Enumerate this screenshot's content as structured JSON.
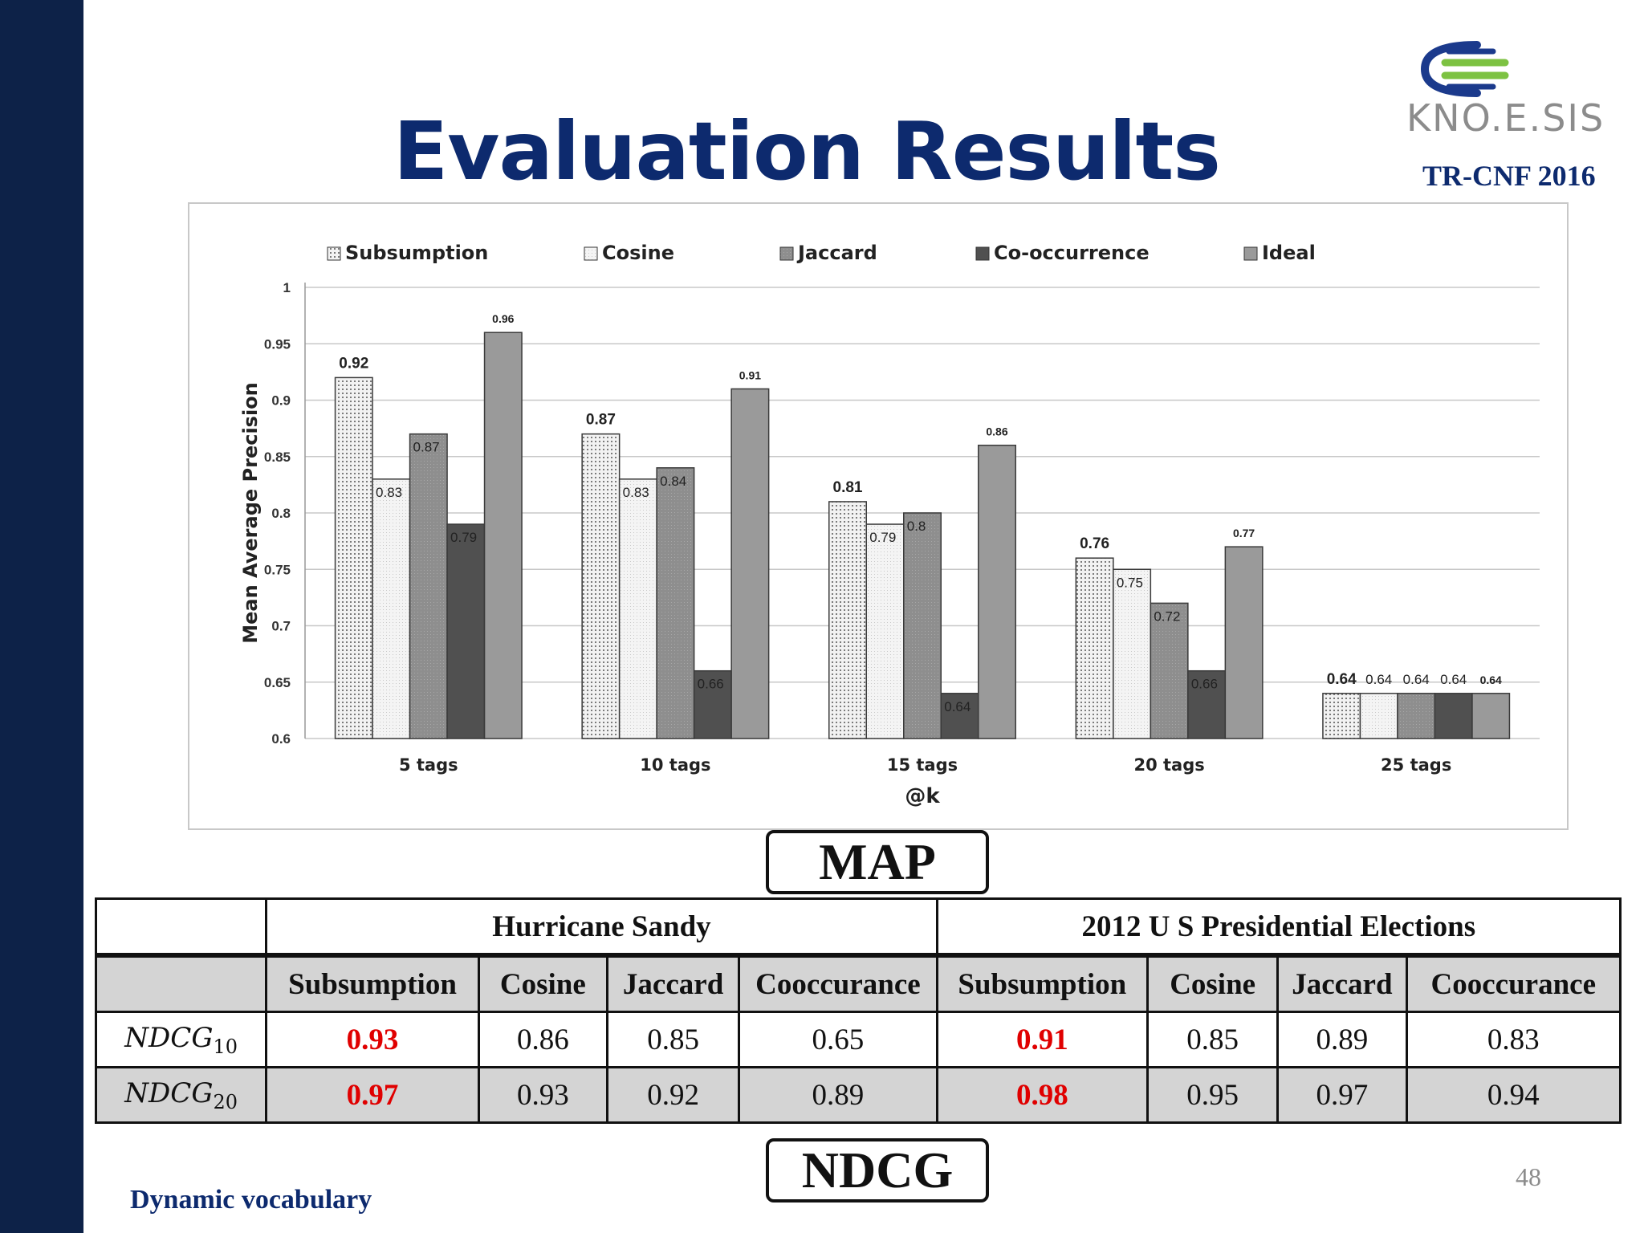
{
  "slide": {
    "title": "Evaluation Results",
    "logo_text": "KNO.E.SIS",
    "conference": "TR-CNF 2016",
    "footer": "Dynamic vocabulary",
    "page_number": "48",
    "map_label": "MAP",
    "ndcg_label": "NDCG"
  },
  "colors": {
    "sidebar": "#0d2248",
    "title": "#0d2a6e",
    "highlight": "#e00000",
    "logo_blue": "#1b3a8c",
    "logo_green": "#7dc242"
  },
  "chart_data": {
    "type": "bar",
    "title": "",
    "xlabel": "@k",
    "ylabel": "Mean Average Precision",
    "ylim": [
      0.6,
      1.0
    ],
    "yticks": [
      "0.6",
      "0.65",
      "0.7",
      "0.75",
      "0.8",
      "0.85",
      "0.9",
      "0.95",
      "1"
    ],
    "grid": true,
    "legend": "top",
    "categories": [
      "5 tags",
      "10 tags",
      "15 tags",
      "20 tags",
      "25 tags"
    ],
    "series": [
      {
        "name": "Subsumption",
        "values": [
          0.92,
          0.87,
          0.81,
          0.76,
          0.64
        ],
        "labels": [
          "0.92",
          "0.87",
          "0.81",
          "0.76",
          "0.64"
        ],
        "pattern": "grid"
      },
      {
        "name": "Cosine",
        "values": [
          0.83,
          0.83,
          0.79,
          0.75,
          0.64
        ],
        "labels": [
          "0.83",
          "0.83",
          "0.79",
          "0.75",
          "0.64"
        ],
        "pattern": "dots"
      },
      {
        "name": "Jaccard",
        "values": [
          0.87,
          0.84,
          0.8,
          0.72,
          0.64
        ],
        "labels": [
          "0.87",
          "0.84",
          "0.8",
          "0.72",
          "0.64"
        ],
        "pattern": "medium"
      },
      {
        "name": "Co-occurrence",
        "values": [
          0.79,
          0.66,
          0.64,
          0.66,
          0.64
        ],
        "labels": [
          "0.79",
          "0.66",
          "0.64",
          "0.66",
          "0.64"
        ],
        "pattern": "dark"
      },
      {
        "name": "Ideal",
        "values": [
          0.96,
          0.91,
          0.86,
          0.77,
          0.64
        ],
        "labels": [
          "0.96",
          "0.91",
          "0.86",
          "0.77",
          "0.64"
        ],
        "pattern": "solid"
      }
    ]
  },
  "table": {
    "groups": [
      "Hurricane Sandy",
      "2012 U S Presidential Elections"
    ],
    "columns": [
      "Subsumption",
      "Cosine",
      "Jaccard",
      "Cooccurance",
      "Subsumption",
      "Cosine",
      "Jaccard",
      "Cooccurance"
    ],
    "rows": [
      {
        "metric": "NDCG",
        "k": "10",
        "values": [
          "0.93",
          "0.86",
          "0.85",
          "0.65",
          "0.91",
          "0.85",
          "0.89",
          "0.83"
        ]
      },
      {
        "metric": "NDCG",
        "k": "20",
        "values": [
          "0.97",
          "0.93",
          "0.92",
          "0.89",
          "0.98",
          "0.95",
          "0.97",
          "0.94"
        ]
      }
    ]
  }
}
